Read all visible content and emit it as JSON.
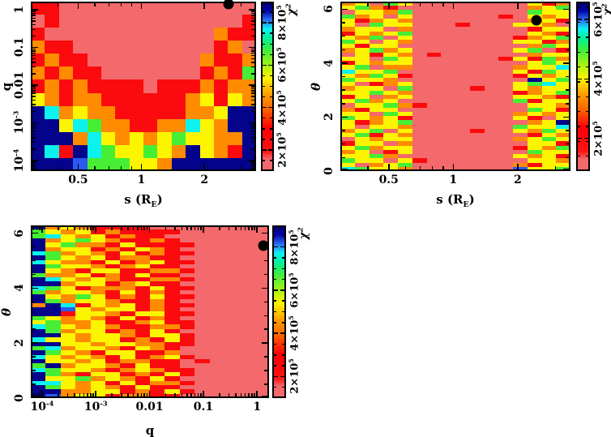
{
  "figure": {
    "background": "#ffffff",
    "marker_color": "#000000",
    "marker_name": "best-fit solution"
  },
  "palette": {
    "s": "#f4696b",
    "r": "#fb0a0e",
    "o": "#fe8b00",
    "y": "#fdf500",
    "g": "#46ef34",
    "c": "#0cf2ee",
    "b": "#2a58f1",
    "n": "#03038b"
  },
  "colorbar_gradient": [
    [
      0.0,
      "#f4696b"
    ],
    [
      0.06,
      "#f4696b"
    ],
    [
      0.11,
      "#fb1410"
    ],
    [
      0.25,
      "#fb0007"
    ],
    [
      0.37,
      "#fe6a00"
    ],
    [
      0.45,
      "#fe9b00"
    ],
    [
      0.55,
      "#fdf500"
    ],
    [
      0.65,
      "#8cf21c"
    ],
    [
      0.72,
      "#3eee3e"
    ],
    [
      0.79,
      "#00f09a"
    ],
    [
      0.845,
      "#0ff2f2"
    ],
    [
      0.9,
      "#2a6cf3"
    ],
    [
      0.955,
      "#0202a8"
    ],
    [
      1.0,
      "#01016e"
    ]
  ],
  "chart_data": [
    {
      "type": "heatmap",
      "id": "s-vs-q",
      "title": "",
      "xaxis": {
        "label_pre": "s (R",
        "label_sub": "E",
        "label_post": ")",
        "italic": false,
        "scale": "log",
        "min": 0.297,
        "max": 3.53,
        "major_ticks": [
          {
            "value": 0.5,
            "label": "0.5"
          },
          {
            "value": 1,
            "label": "1"
          },
          {
            "value": 2,
            "label": "2"
          }
        ]
      },
      "yaxis": {
        "label": "q",
        "italic": false,
        "scale": "log",
        "min": 5.2e-05,
        "max": 1.64,
        "minor_step": 0,
        "major_ticks": [
          {
            "value": 1,
            "label": "1"
          },
          {
            "value": 0.1,
            "label": "0.1"
          },
          {
            "value": 0.01,
            "label": "0.01"
          },
          {
            "value": 0.001,
            "label": "10^-3"
          },
          {
            "value": 0.0001,
            "label": "10^-4"
          }
        ]
      },
      "colorbar": {
        "label": "χ^2",
        "min": 100000,
        "max": 900000,
        "minor_step": 50000,
        "ticks": [
          {
            "value": 200000,
            "label": "2×10^5"
          },
          {
            "value": 400000,
            "label": "4×10^5"
          },
          {
            "value": 600000,
            "label": "6×10^5"
          },
          {
            "value": 800000,
            "label": "8×10^5"
          }
        ]
      },
      "marker": {
        "x": 2.6,
        "y": 1.42
      },
      "n_cols": 16,
      "n_rows": 13,
      "grid": [
        "rrssssssssssssss",
        "srsssssssssssssr",
        "rssssssssssssorr",
        "orrssssssssssros",
        "rorrssssssssorro",
        "ororrsssssssrorg",
        "rororrrrsrrroroo",
        "yoroorrrrrroyryo",
        "ncoyoorrrrrooynn",
        "nnycgoorroocyonn",
        "nnnocyoyoygyyoon",
        "ncrncgyygyonyorn",
        "nnnbgggyyonnnnnn"
      ]
    },
    {
      "type": "heatmap",
      "id": "s-vs-theta",
      "title": "",
      "xaxis": {
        "label_pre": "s (R",
        "label_sub": "E",
        "label_post": ")",
        "italic": false,
        "scale": "log",
        "min": 0.297,
        "max": 3.53,
        "major_ticks": [
          {
            "value": 0.5,
            "label": "0.5"
          },
          {
            "value": 1,
            "label": "1"
          },
          {
            "value": 2,
            "label": "2"
          }
        ]
      },
      "yaxis": {
        "label": "θ",
        "italic": true,
        "scale": "linear",
        "min": 0,
        "max": 6.283,
        "minor_step": 0.5,
        "major_ticks": [
          {
            "value": 0,
            "label": "0"
          },
          {
            "value": 2,
            "label": "2"
          },
          {
            "value": 4,
            "label": "4"
          },
          {
            "value": 6,
            "label": "6"
          }
        ]
      },
      "colorbar": {
        "label": "χ^2",
        "min": 90000,
        "max": 660000,
        "minor_step": 50000,
        "ticks": [
          {
            "value": 200000,
            "label": "2×10^5"
          },
          {
            "value": 400000,
            "label": "4×10^5"
          },
          {
            "value": 600000,
            "label": "6×10^5"
          }
        ]
      },
      "marker": {
        "x": 2.45,
        "y": 5.59
      },
      "n_cols": 16,
      "n_rows": 40,
      "grid": [
        "oysgyssssssssyro",
        "ygorsssssssssoyg",
        "syyogssssssssgyy",
        "goysyssssssrsyoy",
        "yroyossssssssoyr",
        "ysgyysssrsssyyos",
        "oyysossssssssryy",
        "ryoygssssssssyor",
        "yogsysssssssroyg",
        "gysyosssssssyyro",
        "yryysssssssssogy",
        "oygoysssssssygsr",
        "syryosrssssssoyy",
        "yysgyssssssryrgo",
        "ryoyyssssssssygy",
        "ygsoosssssssoyyc",
        "cyygssssssssyrgy",
        "yogyrsssssssryoy",
        "gyyosssssssssnyg",
        "ysroysssssssygcy",
        "oyysgssssrssyoyy",
        "yygyosssssssroyg",
        "rysoysssssssyyor",
        "ygoyssssssssgryy",
        "syygorsssssssyyo",
        "oryysssssssssgyr",
        "yysgysssssssoyoy",
        "gyoyrsssssssyrsy",
        "yroygssssssssoyn",
        "ysyyosssssssgyyc",
        "oygsyssssrssyogy",
        "ygryossssssssryo",
        "syoyysssssssoygy",
        "ryysossssssssyyr",
        "ygoyysssssssryog",
        "oysryssssssssgyy",
        "yygossssssssyoyr",
        "gyysyrsssssssyyo",
        "ysoygsssssssoryy",
        "cgyyosssssssbyyg"
      ]
    },
    {
      "type": "heatmap",
      "id": "q-vs-theta",
      "title": "",
      "xaxis": {
        "label_pre": "q",
        "label_sub": "",
        "label_post": "",
        "italic": false,
        "scale": "log",
        "min": 6.17e-05,
        "max": 1.67,
        "major_ticks": [
          {
            "value": 0.0001,
            "label": "10^-4"
          },
          {
            "value": 0.001,
            "label": "10^-3"
          },
          {
            "value": 0.01,
            "label": "0.01"
          },
          {
            "value": 0.1,
            "label": "0.1"
          },
          {
            "value": 1,
            "label": "1"
          }
        ]
      },
      "yaxis": {
        "label": "θ",
        "italic": true,
        "scale": "linear",
        "min": 0,
        "max": 6.283,
        "minor_step": 0.5,
        "major_ticks": [
          {
            "value": 0,
            "label": "0"
          },
          {
            "value": 2,
            "label": "2"
          },
          {
            "value": 4,
            "label": "4"
          },
          {
            "value": 6,
            "label": "6"
          }
        ]
      },
      "colorbar": {
        "label": "χ^2",
        "min": 100000,
        "max": 900000,
        "minor_step": 50000,
        "ticks": [
          {
            "value": 200000,
            "label": "2×10^5"
          },
          {
            "value": 400000,
            "label": "4×10^5"
          },
          {
            "value": 600000,
            "label": "6×10^5"
          },
          {
            "value": 800000,
            "label": "8×10^5"
          }
        ]
      },
      "marker": {
        "x": 1.33,
        "y": 5.55
      },
      "n_cols": 16,
      "n_rows": 40,
      "grid": [
        "noyorrrrssssssss",
        "gyoyrorrrrssssss",
        "gcyoyrorrsssssss",
        "noygyorrorssssss",
        "nygooryrrrrsssss",
        "noyyroryorssssss",
        "cgoyoryrorrsssss",
        "ngyoyroorrssssss",
        "cyooryroyrrsssss",
        "ngyyoroyrrssssss",
        "nyoryyrroorsssss",
        "gooyroryrrssssss",
        "ncyoyorroorsssss",
        "nnoyyroyrrssssss",
        "cgyroooryrrsssss",
        "goyyoryrorssssss",
        "nyogyroryrrsssss",
        "ngoyyorrorssssss",
        "oncryoyrorrsssss",
        "nnbyoyyrorssssss",
        "nnryyoryyrrsssss",
        "gyoyoryrorssssss",
        "ygooyrroyrrsssss",
        "cgyoyorroorsssss",
        "ngoyyroryrssssss",
        "nnyoyyoryyrsssss",
        "cyyoyyroryrsssss",
        "nnyyoyyoorrsssss",
        "gcoyyoryorssssss",
        "ngyoryyrrossssss",
        "cyoyoryroyrsssss",
        "nyyoyroorrsrssss",
        "gnoyyoryrrssssss",
        "cgyyoroyorrsssss",
        "ngoryyroryrsssss",
        "nyygoyoryrssssss",
        "ccyoyryroorsssss",
        "ngyoyoryrrssssss",
        "nnooyyroryrsssss",
        "nboyyroorrssssss"
      ]
    }
  ]
}
